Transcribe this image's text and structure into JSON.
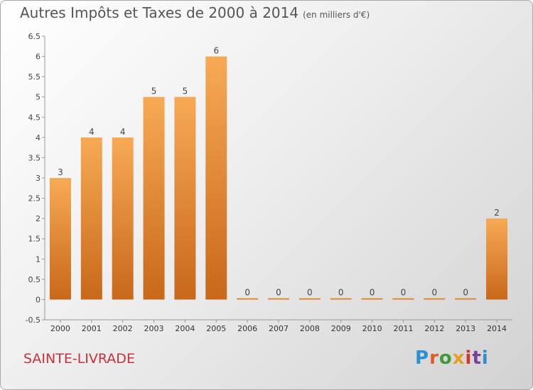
{
  "header": {
    "title": "Autres Impôts et Taxes de 2000 à 2014",
    "unit": "(en milliers d'€)"
  },
  "footer": {
    "commune": "SAINTE-LIVRADE",
    "logo_text": "Proxiti",
    "logo_colors": [
      "#2d8fcf",
      "#e35a26",
      "#3f9b3a",
      "#e4a01a",
      "#d8332f",
      "#7a3f98",
      "#2d8fcf"
    ]
  },
  "colors": {
    "bar_light": "#f7aa55",
    "bar_dark": "#c8681a",
    "commune": "#c8313a"
  },
  "chart_data": {
    "type": "bar",
    "title": "Autres Impôts et Taxes de 2000 à 2014",
    "categories": [
      "2000",
      "2001",
      "2002",
      "2003",
      "2004",
      "2005",
      "2006",
      "2007",
      "2008",
      "2009",
      "2010",
      "2011",
      "2012",
      "2013",
      "2014"
    ],
    "values": [
      3,
      4,
      4,
      5,
      5,
      6,
      0,
      0,
      0,
      0,
      0,
      0,
      0,
      0,
      2
    ],
    "ylim": [
      -0.5,
      6.5
    ],
    "yticks": [
      -0.5,
      0,
      0.5,
      1,
      1.5,
      2,
      2.5,
      3,
      3.5,
      4,
      4.5,
      5,
      5.5,
      6,
      6.5
    ],
    "ytick_labels": [
      "-0.5",
      "0",
      "0.5",
      "1",
      "1.5",
      "2",
      "2.5",
      "3",
      "3.5",
      "4",
      "4.5",
      "5",
      "5.5",
      "6",
      "6.5"
    ],
    "data_labels": [
      "3",
      "4",
      "4",
      "5",
      "5",
      "6",
      "0",
      "0",
      "0",
      "0",
      "0",
      "0",
      "0",
      "0",
      "2"
    ],
    "grid": false,
    "legend": false
  }
}
